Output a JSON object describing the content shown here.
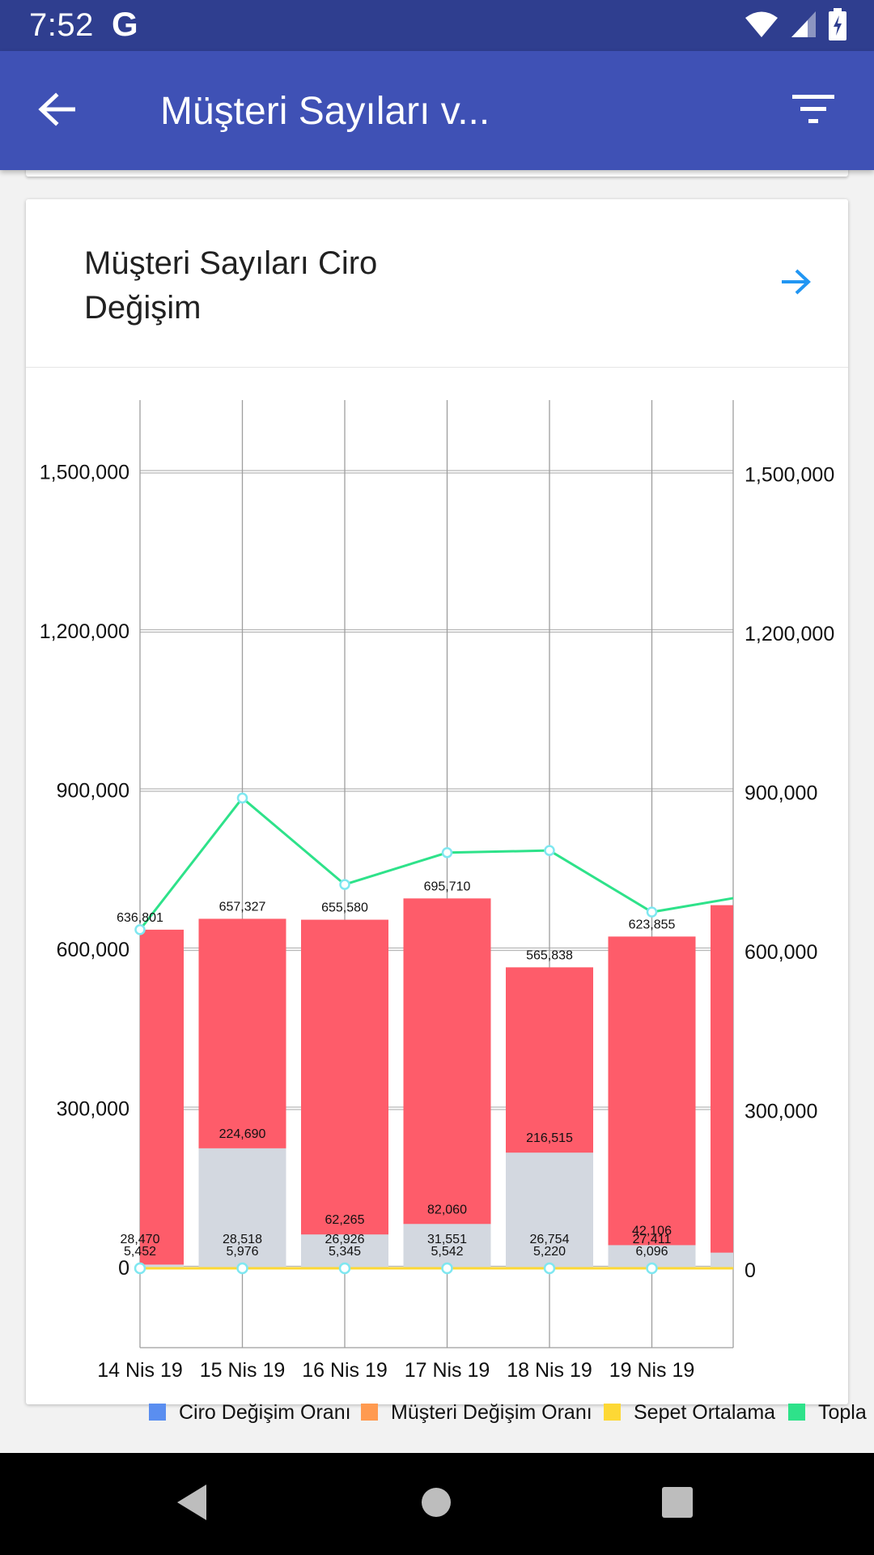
{
  "status_bar": {
    "time": "7:52",
    "notification_app": "G",
    "icons": [
      "wifi-icon",
      "signal-icon",
      "battery-charging-icon"
    ]
  },
  "app_bar": {
    "title": "Müşteri Sayıları v...",
    "back_icon": "arrow-back-icon",
    "filter_icon": "filter-icon",
    "background": "#3f51b5",
    "status_background": "#2f3e8f"
  },
  "card": {
    "title_line1": "Müşteri Sayıları Ciro",
    "title_line2": "Değişim",
    "link_icon": "arrow-forward-icon",
    "link_color": "#2196f3"
  },
  "chart_data": {
    "type": "bar",
    "categories": [
      "14 Nis 19",
      "15 Nis 19",
      "16 Nis 19",
      "17 Nis 19",
      "18 Nis 19",
      "19 Nis 19",
      ""
    ],
    "left_axis": {
      "ylim": [
        -250000,
        1725000
      ],
      "ticks": [
        "1,500,000",
        "1,200,000",
        "900,000",
        "600,000",
        "300,000",
        "0"
      ],
      "tick_values": [
        1500000,
        1200000,
        900000,
        600000,
        300000,
        0
      ]
    },
    "right_axis": {
      "ylim": [
        -250000,
        1725000
      ],
      "ticks": [
        "1,500,000",
        "1,200,000",
        "900,000",
        "600,000",
        "300,000",
        "0"
      ],
      "tick_values": [
        1500000,
        1200000,
        900000,
        600000,
        300000,
        0
      ]
    },
    "grid": true,
    "series": [
      {
        "name": "Ciro Değişim Oranı",
        "kind": "bar",
        "color": "#5a8ef0",
        "values": [
          0,
          0,
          0,
          0,
          0,
          0,
          0
        ]
      },
      {
        "name": "Müşteri Değişim Oranı",
        "kind": "bar",
        "color": "#ff9a50",
        "values": [
          0,
          0,
          0,
          0,
          0,
          0,
          0
        ]
      },
      {
        "name": "Sepet Ortalama",
        "kind": "line",
        "color": "#fdd835",
        "values": [
          0,
          0,
          0,
          0,
          0,
          0,
          0
        ]
      },
      {
        "name": "Topla",
        "kind": "line",
        "color": "#2ee28a",
        "values": [
          636801,
          885000,
          722000,
          782000,
          786000,
          670000,
          703000
        ]
      }
    ],
    "stacked_bars": [
      {
        "label": "636,801",
        "total": 636801,
        "gray": 5452,
        "gray_label": "5,452",
        "inner_label": "28,470"
      },
      {
        "label": "657,327",
        "total": 657327,
        "gray": 224690,
        "gray_label": "224,690",
        "inner_label": "28,518",
        "low_label": "5,976"
      },
      {
        "label": "655,580",
        "total": 655580,
        "gray": 62265,
        "gray_label": "62,265",
        "inner_label": "26,926",
        "low_label": "5,345"
      },
      {
        "label": "695,710",
        "total": 695710,
        "gray": 82060,
        "gray_label": "82,060",
        "inner_label": "31,551",
        "low_label": "5,542"
      },
      {
        "label": "565,838",
        "total": 565838,
        "gray": 216515,
        "gray_label": "216,515",
        "inner_label": "26,754",
        "low_label": "5,220"
      },
      {
        "label": "623,855",
        "total": 623855,
        "gray": 42106,
        "gray_label": "42,106",
        "inner_label": "27,411",
        "low_label": "6,096"
      },
      {
        "label": "",
        "total": 683000,
        "gray": 28000,
        "gray_label": ""
      }
    ],
    "bar_colors": {
      "total": "#fe5c6a",
      "inner": "#d3d8e0"
    },
    "legend": {
      "placement": "bottom",
      "items": [
        "Ciro Değişim Oranı",
        "Müşteri Değişim Oranı",
        "Sepet Ortalama",
        "Topla"
      ]
    }
  },
  "nav_bar": {
    "icons": [
      "back-triangle-icon",
      "home-circle-icon",
      "recents-square-icon"
    ]
  }
}
